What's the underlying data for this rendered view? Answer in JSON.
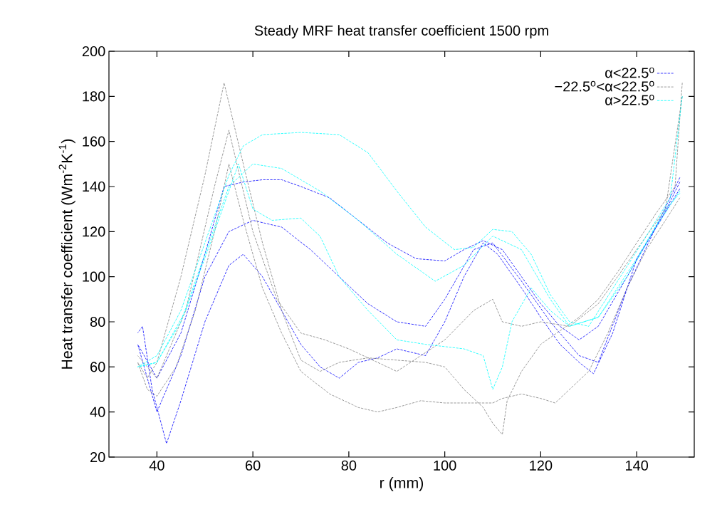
{
  "chart_data": {
    "type": "line",
    "title": "Steady MRF heat transfer coefficient 1500 rpm",
    "xlabel": "r (mm)",
    "ylabel": "Heat transfer coefficient (Wm$^{-2}$K$^{-1}$)",
    "xlim": [
      30,
      152
    ],
    "ylim": [
      20,
      200
    ],
    "xticks": [
      40,
      60,
      80,
      100,
      120,
      140
    ],
    "yticks": [
      20,
      40,
      60,
      80,
      100,
      120,
      140,
      160,
      180,
      200
    ],
    "legend": "top right",
    "grid": false,
    "marker": "none",
    "series": [
      {
        "name": "α<22.5$^{o}$",
        "color": "#0000ff",
        "line_style": "dashed",
        "x": [
          36,
          37,
          39,
          42,
          45,
          50,
          55,
          58,
          62,
          66,
          70,
          74,
          78,
          82,
          86,
          90,
          96,
          100,
          104,
          108,
          111,
          116,
          120,
          124,
          128,
          131,
          135,
          140,
          145,
          149
        ],
        "values": [
          75,
          78,
          50,
          26,
          45,
          80,
          105,
          110,
          100,
          85,
          70,
          60,
          55,
          62,
          64,
          68,
          65,
          80,
          100,
          115,
          110,
          95,
          82,
          70,
          62,
          57,
          75,
          108,
          125,
          142
        ]
      },
      {
        "color": "#0000ff",
        "line_style": "dashed",
        "x": [
          36,
          40,
          45,
          50,
          55,
          60,
          66,
          72,
          78,
          84,
          90,
          96,
          100,
          106,
          110,
          116,
          122,
          128,
          132,
          138,
          144,
          149
        ],
        "values": [
          70,
          40,
          65,
          100,
          120,
          125,
          122,
          112,
          100,
          88,
          80,
          78,
          90,
          112,
          115,
          98,
          80,
          65,
          62,
          95,
          122,
          139
        ]
      },
      {
        "color": "#0000ff",
        "line_style": "dashed",
        "x": [
          36,
          40,
          45,
          50,
          54,
          58,
          62,
          66,
          70,
          76,
          82,
          88,
          94,
          100,
          104,
          108,
          112,
          116,
          120,
          124,
          128,
          132,
          138,
          144,
          149
        ],
        "values": [
          70,
          55,
          75,
          110,
          140,
          142,
          143,
          143,
          140,
          135,
          125,
          115,
          108,
          107,
          112,
          116,
          112,
          100,
          88,
          78,
          72,
          78,
          100,
          122,
          144
        ]
      },
      {
        "name": "−22.5$^{o}$<α<22.5$^{o}$",
        "color": "#808080",
        "line_style": "dashed",
        "x": [
          36,
          38,
          40,
          45,
          50,
          54,
          58,
          62,
          66,
          70,
          74,
          78,
          84,
          90,
          96,
          100,
          104,
          108,
          110,
          112,
          113,
          116,
          120,
          124,
          128,
          132,
          136,
          140,
          144,
          148,
          149.5
        ],
        "values": [
          62,
          55,
          62,
          100,
          145,
          186,
          150,
          115,
          85,
          63,
          58,
          62,
          64,
          63,
          62,
          60,
          50,
          42,
          35,
          30,
          45,
          58,
          70,
          76,
          82,
          90,
          102,
          115,
          128,
          140,
          186
        ]
      },
      {
        "color": "#808080",
        "line_style": "dashed",
        "x": [
          36,
          38,
          40,
          44,
          48,
          52,
          55,
          58,
          62,
          66,
          70,
          76,
          82,
          86,
          90,
          95,
          100,
          106,
          110,
          112,
          116,
          120,
          123,
          126,
          130,
          134,
          138,
          142,
          146,
          149
        ],
        "values": [
          62,
          50,
          47,
          60,
          85,
          120,
          150,
          125,
          95,
          75,
          58,
          48,
          42,
          40,
          42,
          45,
          44,
          44,
          44,
          46,
          48,
          46,
          44,
          50,
          58,
          75,
          95,
          112,
          125,
          135
        ]
      },
      {
        "color": "#808080",
        "line_style": "dashed",
        "x": [
          36,
          40,
          46,
          52,
          55,
          60,
          65,
          70,
          75,
          80,
          90,
          100,
          106,
          110,
          112,
          116,
          120,
          126,
          132,
          140,
          146,
          149.5
        ],
        "values": [
          65,
          55,
          85,
          140,
          165,
          120,
          90,
          75,
          72,
          68,
          58,
          72,
          85,
          90,
          80,
          78,
          80,
          78,
          88,
          112,
          130,
          180
        ]
      },
      {
        "name": "α>22.5$^{o}$",
        "color": "#00ffff",
        "line_style": "dashed",
        "x": [
          36,
          40,
          45,
          50,
          55,
          58,
          62,
          70,
          78,
          84,
          90,
          96,
          102,
          106,
          110,
          114,
          118,
          122,
          126,
          130,
          136,
          142,
          147,
          149.5
        ],
        "values": [
          60,
          65,
          85,
          115,
          145,
          158,
          163,
          164,
          163,
          155,
          138,
          122,
          112,
          113,
          121,
          120,
          110,
          92,
          80,
          78,
          98,
          118,
          135,
          180
        ]
      },
      {
        "color": "#00ffff",
        "line_style": "dashed",
        "x": [
          36,
          40,
          45,
          50,
          55,
          60,
          66,
          74,
          82,
          90,
          98,
          104,
          110,
          116,
          122,
          126,
          132,
          138,
          144,
          149
        ],
        "values": [
          60,
          62,
          80,
          110,
          140,
          150,
          148,
          138,
          125,
          110,
          98,
          105,
          118,
          112,
          90,
          78,
          82,
          100,
          122,
          138
        ]
      },
      {
        "color": "#00ffff",
        "line_style": "dashed",
        "x": [
          36,
          40,
          46,
          52,
          57,
          60,
          64,
          70,
          74,
          78,
          84,
          90,
          96,
          104,
          108,
          110,
          112,
          114,
          118,
          122,
          126,
          132,
          140,
          146,
          149
        ],
        "values": [
          60,
          62,
          85,
          120,
          150,
          130,
          125,
          126,
          118,
          100,
          85,
          72,
          70,
          68,
          65,
          50,
          60,
          80,
          95,
          85,
          78,
          82,
          108,
          130,
          137
        ]
      }
    ]
  }
}
